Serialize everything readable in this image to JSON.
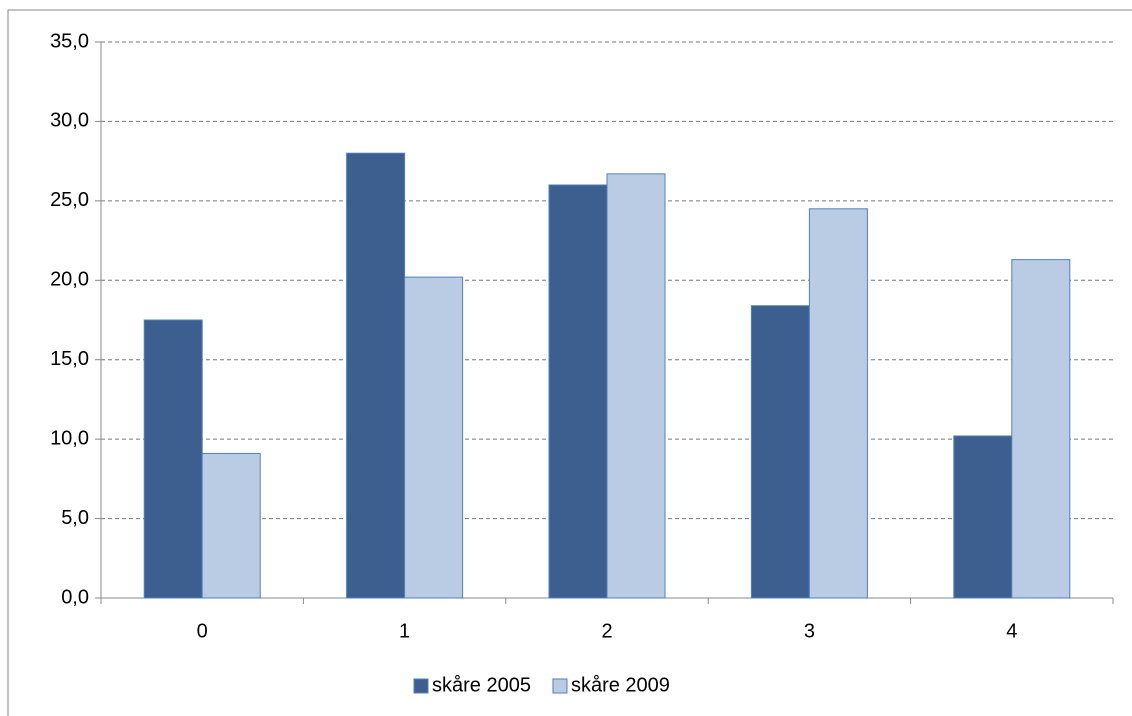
{
  "chart_data": {
    "type": "bar",
    "categories": [
      "0",
      "1",
      "2",
      "3",
      "4"
    ],
    "series": [
      {
        "name": "skåre 2005",
        "color": "#3d5f8f",
        "values": [
          17.5,
          28.0,
          26.0,
          18.4,
          10.2
        ]
      },
      {
        "name": "skåre 2009",
        "color": "#b9cce4",
        "values": [
          9.1,
          20.2,
          26.7,
          24.5,
          21.3
        ]
      }
    ],
    "ylim": [
      0,
      35
    ],
    "yticks": [
      {
        "value": 0,
        "label": "0,0"
      },
      {
        "value": 5,
        "label": "5,0"
      },
      {
        "value": 10,
        "label": "10,0"
      },
      {
        "value": 15,
        "label": "15,0"
      },
      {
        "value": 20,
        "label": "20,0"
      },
      {
        "value": 25,
        "label": "25,0"
      },
      {
        "value": 30,
        "label": "30,0"
      },
      {
        "value": 35,
        "label": "35,0"
      }
    ],
    "grid": true,
    "legend": "bottom"
  }
}
